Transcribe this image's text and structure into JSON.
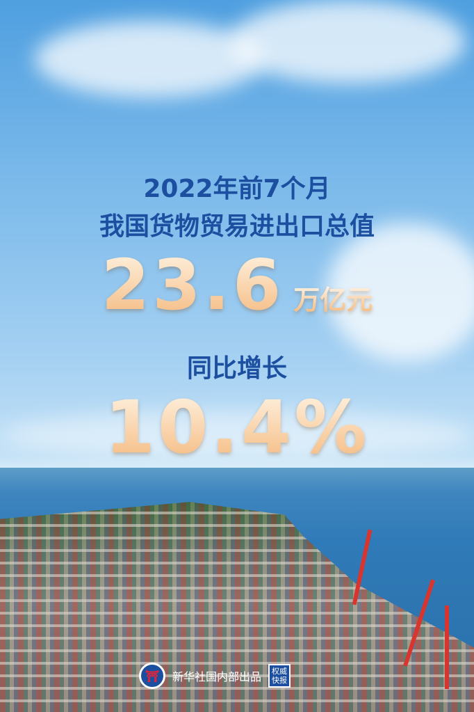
{
  "headline": {
    "line1": "2022年前7个月",
    "line2": "我国货物贸易进出口总值",
    "value": "23.6",
    "unit": "万亿元"
  },
  "growth": {
    "label": "同比增长",
    "value": "10.4%"
  },
  "footer": {
    "publisher": "新华社国内部出品",
    "stamp_text": "权威快报",
    "logo_text": "新华社"
  },
  "colors": {
    "title_blue": "#1c4fa0",
    "number_gold": "#f4b77a"
  }
}
